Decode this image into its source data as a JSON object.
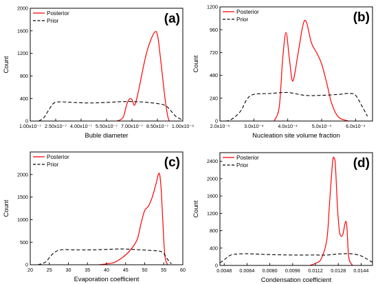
{
  "chart_data": [
    {
      "id": "a",
      "type": "line",
      "panel_label": "(a)",
      "xlabel": "Buble diameter",
      "ylabel": "Count",
      "xlim": [
        1e-07,
        1e-06
      ],
      "ylim": [
        0,
        2000
      ],
      "xticks": [
        1e-07,
        2.5e-07,
        4e-07,
        5.5e-07,
        7e-07,
        8.5e-07,
        1e-06
      ],
      "xtick_labels": [
        "1.00x10⁻⁷",
        "2.50x10⁻⁷",
        "4.00x10⁻⁷",
        "5.50x10⁻⁷",
        "7.00x10⁻⁷",
        "8.50x10⁻⁷",
        "1.00x10⁻⁶"
      ],
      "yticks": [
        0,
        400,
        800,
        1200,
        1600,
        2000
      ],
      "ytick_labels": [
        "0",
        "400",
        "800",
        "1200",
        "1600",
        "2000"
      ],
      "legend": {
        "position": "top-left"
      },
      "series": [
        {
          "name": "Posterior",
          "color": "#ff0000",
          "style": "solid",
          "x": [
            6.1e-07,
            6.3e-07,
            6.5e-07,
            6.7e-07,
            6.85e-07,
            7e-07,
            7.15e-07,
            7.3e-07,
            7.5e-07,
            7.7e-07,
            7.9e-07,
            8.1e-07,
            8.3e-07,
            8.45e-07,
            8.55e-07,
            8.65e-07,
            8.8e-07,
            8.95e-07,
            9.1e-07,
            9.2e-07
          ],
          "y": [
            0,
            20,
            80,
            300,
            390,
            380,
            280,
            420,
            700,
            1000,
            1250,
            1430,
            1560,
            1580,
            1450,
            1200,
            800,
            400,
            100,
            0
          ]
        },
        {
          "name": "Prior",
          "color": "#000000",
          "style": "dashed",
          "x": [
            1.5e-07,
            1.8e-07,
            2.1e-07,
            2.4e-07,
            2.8e-07,
            3.5e-07,
            4.5e-07,
            5.5e-07,
            6.5e-07,
            7.5e-07,
            8.5e-07,
            9e-07,
            9.3e-07,
            9.6e-07,
            1e-06
          ],
          "y": [
            0,
            60,
            200,
            320,
            340,
            330,
            320,
            330,
            345,
            340,
            310,
            270,
            180,
            80,
            15
          ]
        }
      ]
    },
    {
      "id": "b",
      "type": "line",
      "panel_label": "(b)",
      "xlabel": "Nucleation site volume fraction",
      "ylabel": "Count",
      "xlim": [
        0.0002,
        0.00065
      ],
      "ylim": [
        0,
        1200
      ],
      "xticks": [
        0.0002,
        0.0003,
        0.0004,
        0.0005,
        0.0006
      ],
      "xtick_labels": [
        "2.0x10⁻⁴",
        "3.0x10⁻⁴",
        "4.0x10⁻⁴",
        "5.0x10⁻⁴",
        "6.0x10⁻⁴"
      ],
      "yticks": [
        0,
        240,
        480,
        720,
        960,
        1200
      ],
      "ytick_labels": [
        "0",
        "240",
        "480",
        "720",
        "960",
        "1200"
      ],
      "legend": {
        "position": "top-left"
      },
      "series": [
        {
          "name": "Posterior",
          "color": "#ff0000",
          "style": "solid",
          "x": [
            0.00036,
            0.000375,
            0.000385,
            0.000395,
            0.000405,
            0.000415,
            0.00043,
            0.000445,
            0.000455,
            0.00047,
            0.000485,
            0.0005,
            0.000515,
            0.00053,
            0.00055,
            0.00058
          ],
          "y": [
            0,
            150,
            650,
            930,
            650,
            420,
            700,
            1010,
            1040,
            820,
            720,
            600,
            400,
            180,
            40,
            0
          ]
        },
        {
          "name": "Prior",
          "color": "#000000",
          "style": "dashed",
          "x": [
            0.0002,
            0.00023,
            0.00026,
            0.00028,
            0.0003,
            0.00035,
            0.0004,
            0.00045,
            0.0005,
            0.00055,
            0.00058,
            0.0006,
            0.00062,
            0.000635
          ],
          "y": [
            0,
            10,
            100,
            230,
            280,
            290,
            300,
            270,
            270,
            280,
            290,
            270,
            150,
            50
          ]
        }
      ]
    },
    {
      "id": "c",
      "type": "line",
      "panel_label": "(c)",
      "xlabel": "Evaporation coefficient",
      "ylabel": "Count",
      "xlim": [
        20,
        60
      ],
      "ylim": [
        0,
        2500
      ],
      "xticks": [
        20,
        25,
        30,
        35,
        40,
        45,
        50,
        55,
        60
      ],
      "xtick_labels": [
        "20",
        "25",
        "30",
        "35",
        "40",
        "45",
        "50",
        "55",
        "60"
      ],
      "yticks": [
        0,
        500,
        1000,
        1500,
        2000
      ],
      "ytick_labels": [
        "0",
        "500",
        "1000",
        "1500",
        "2000"
      ],
      "legend": {
        "position": "top-left"
      },
      "series": [
        {
          "name": "Posterior",
          "color": "#ff0000",
          "style": "solid",
          "x": [
            38,
            40,
            42,
            44,
            46,
            48,
            49,
            50,
            51,
            52,
            53,
            53.8,
            54.3,
            54.8,
            55.3,
            56
          ],
          "y": [
            0,
            20,
            50,
            150,
            300,
            550,
            900,
            1200,
            1300,
            1500,
            1800,
            2030,
            1700,
            900,
            200,
            0
          ]
        },
        {
          "name": "Prior",
          "color": "#000000",
          "style": "dashed",
          "x": [
            22,
            24,
            26,
            28,
            32,
            36,
            40,
            44,
            48,
            52,
            54,
            55,
            56,
            57
          ],
          "y": [
            0,
            60,
            250,
            330,
            330,
            330,
            340,
            350,
            335,
            315,
            300,
            250,
            120,
            20
          ]
        }
      ]
    },
    {
      "id": "d",
      "type": "line",
      "panel_label": "(d)",
      "xlabel": "Condensation coefficient",
      "ylabel": "Count",
      "xlim": [
        0.0045,
        0.0152
      ],
      "ylim": [
        0,
        2600
      ],
      "xticks": [
        0.0048,
        0.0064,
        0.008,
        0.0096,
        0.0112,
        0.0128,
        0.0144
      ],
      "xtick_labels": [
        "0.0048",
        "0.0064",
        "0.0080",
        "0.0096",
        "0.0112",
        "0.0128",
        "0.0144"
      ],
      "yticks": [
        0,
        400,
        800,
        1200,
        1600,
        2000,
        2400
      ],
      "ytick_labels": [
        "0",
        "400",
        "800",
        "1200",
        "1600",
        "2000",
        "2400"
      ],
      "legend": {
        "position": "top-left"
      },
      "series": [
        {
          "name": "Posterior",
          "color": "#ff0000",
          "style": "solid",
          "x": [
            0.0108,
            0.0112,
            0.0116,
            0.012,
            0.0122,
            0.0124,
            0.0125,
            0.0126,
            0.01275,
            0.0129,
            0.0131,
            0.0133,
            0.0134,
            0.0135,
            0.0136,
            0.0138
          ],
          "y": [
            0,
            50,
            150,
            600,
            1500,
            2380,
            2480,
            2300,
            1300,
            750,
            700,
            1000,
            900,
            300,
            100,
            0
          ]
        },
        {
          "name": "Prior",
          "color": "#000000",
          "style": "dashed",
          "x": [
            0.0045,
            0.0048,
            0.0052,
            0.0056,
            0.0064,
            0.0072,
            0.008,
            0.0096,
            0.0112,
            0.012,
            0.0128,
            0.0136,
            0.014,
            0.0144,
            0.0148,
            0.0152
          ],
          "y": [
            60,
            130,
            230,
            260,
            270,
            260,
            250,
            240,
            240,
            240,
            265,
            270,
            255,
            220,
            150,
            70
          ]
        }
      ]
    }
  ]
}
